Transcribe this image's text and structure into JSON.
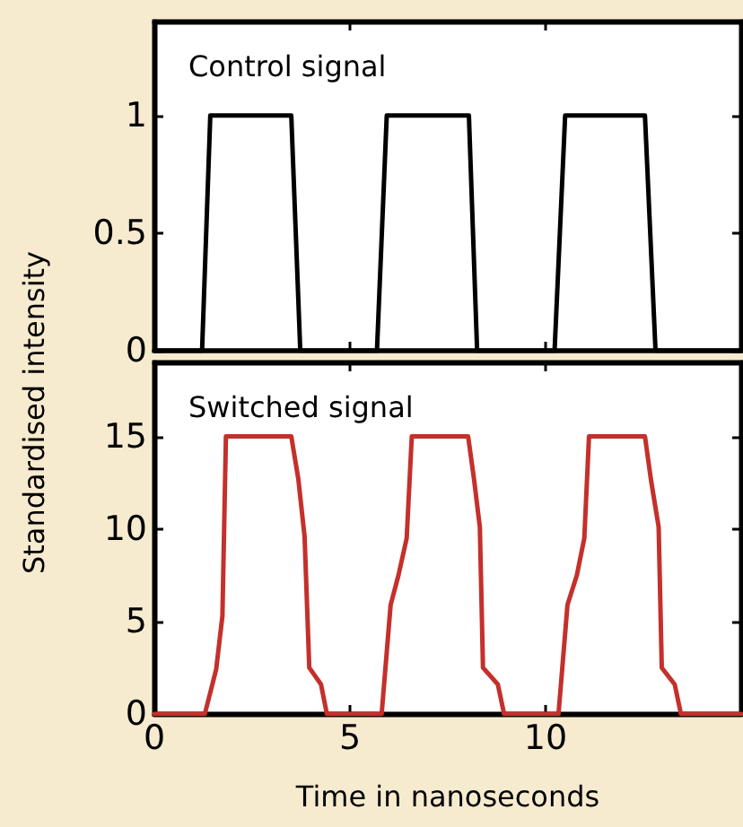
{
  "chart_data": [
    {
      "type": "line",
      "title": "Control signal",
      "ylabel": "Standardised intensity",
      "xlim": [
        0,
        15
      ],
      "xticks": [
        0,
        5,
        10
      ],
      "ylim": [
        0,
        1.4
      ],
      "yticks": [
        0,
        0.5,
        1
      ],
      "tick_labels": "y",
      "grid": false,
      "marker": "none",
      "line_style": "solid",
      "series": [
        {
          "color": "#000000",
          "x": [
            0,
            1.22,
            1.43,
            3.5,
            3.73,
            5.69,
            5.94,
            8.04,
            8.25,
            10.23,
            10.5,
            12.54,
            12.81,
            15
          ],
          "values": [
            0,
            0,
            1,
            1,
            0,
            0,
            1,
            1,
            0,
            0,
            1,
            1,
            0,
            0
          ]
        }
      ]
    },
    {
      "type": "line",
      "title": "Switched signal",
      "xlabel": "Time in nanoseconds",
      "xlim": [
        0,
        15
      ],
      "xticks": [
        0,
        5,
        10
      ],
      "ylim": [
        0,
        19
      ],
      "yticks": [
        0,
        5,
        10,
        15
      ],
      "grid": false,
      "marker": "none",
      "line_style": "solid",
      "series": [
        {
          "color": "#c4302b",
          "x": [
            0,
            1.29,
            1.58,
            1.74,
            1.83,
            3.5,
            3.68,
            3.84,
            3.96,
            4.26,
            4.41,
            5.81,
            6.04,
            6.24,
            6.45,
            6.58,
            8.02,
            8.17,
            8.32,
            8.4,
            8.78,
            8.94,
            10.33,
            10.56,
            10.8,
            10.99,
            11.11,
            12.54,
            12.69,
            12.89,
            12.97,
            13.3,
            13.46,
            15
          ],
          "values": [
            0,
            0,
            2.4,
            5.3,
            15,
            15,
            12.7,
            9.6,
            2.5,
            1.6,
            0,
            0,
            5.9,
            7.5,
            9.5,
            15,
            15,
            12.7,
            10.1,
            2.5,
            1.6,
            0,
            0,
            5.9,
            7.5,
            9.5,
            15,
            15,
            12.7,
            10.1,
            2.5,
            1.6,
            0,
            0
          ]
        }
      ]
    }
  ]
}
